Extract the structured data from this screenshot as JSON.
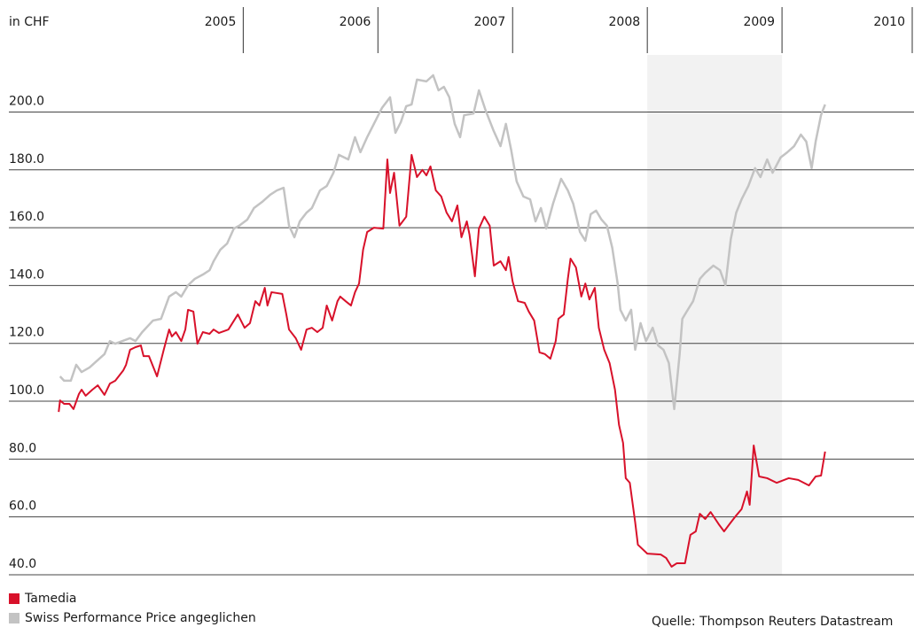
{
  "chart_data": {
    "type": "line",
    "axis_label": "in CHF",
    "source": "Quelle: Thompson Reuters Datastream",
    "xlim": [
      2004.26,
      2010.98
    ],
    "xticks": [
      2005,
      2006,
      2007,
      2008,
      2009,
      2010
    ],
    "ylim": [
      40,
      215
    ],
    "yticks": [
      {
        "value": 40,
        "label": "40.0"
      },
      {
        "value": 60,
        "label": "60.0"
      },
      {
        "value": 80,
        "label": "80.0"
      },
      {
        "value": 100,
        "label": "100.0"
      },
      {
        "value": 120,
        "label": "120.0"
      },
      {
        "value": 140,
        "label": "140.0"
      },
      {
        "value": 160,
        "label": "160.0"
      },
      {
        "value": 180,
        "label": "180.0"
      },
      {
        "value": 200,
        "label": "200.0"
      }
    ],
    "grid": true,
    "highlight": [
      2009,
      2010
    ],
    "highlight_color": "#f2f2f2",
    "series": [
      {
        "name": "Swiss Performance Price angeglichen",
        "color": "#c3c3c3",
        "x": [
          2004.64,
          2004.67,
          2004.72,
          2004.76,
          2004.8,
          2004.86,
          2004.91,
          2004.97,
          2005.01,
          2005.05,
          2005.16,
          2005.2,
          2005.25,
          2005.33,
          2005.39,
          2005.45,
          2005.5,
          2005.54,
          2005.59,
          2005.64,
          2005.7,
          2005.75,
          2005.78,
          2005.83,
          2005.88,
          2005.93,
          2005.97,
          2006.03,
          2006.08,
          2006.14,
          2006.2,
          2006.25,
          2006.3,
          2006.34,
          2006.38,
          2006.42,
          2006.47,
          2006.51,
          2006.57,
          2006.62,
          2006.67,
          2006.71,
          2006.78,
          2006.83,
          2006.87,
          2006.92,
          2006.97,
          2007.03,
          2007.09,
          2007.13,
          2007.17,
          2007.21,
          2007.25,
          2007.29,
          2007.36,
          2007.41,
          2007.45,
          2007.49,
          2007.53,
          2007.57,
          2007.61,
          2007.64,
          2007.71,
          2007.75,
          2007.8,
          2007.86,
          2007.91,
          2007.95,
          2007.99,
          2008.03,
          2008.08,
          2008.13,
          2008.17,
          2008.21,
          2008.25,
          2008.3,
          2008.36,
          2008.41,
          2008.45,
          2008.5,
          2008.54,
          2008.58,
          2008.62,
          2008.66,
          2008.7,
          2008.74,
          2008.78,
          2008.8,
          2008.84,
          2008.88,
          2008.91,
          2008.95,
          2008.99,
          2009.04,
          2009.08,
          2009.12,
          2009.16,
          2009.2,
          2009.24,
          2009.26,
          2009.3,
          2009.34,
          2009.39,
          2009.43,
          2009.49,
          2009.54,
          2009.58,
          2009.62,
          2009.66,
          2009.7,
          2009.75,
          2009.8,
          2009.84,
          2009.89,
          2009.93,
          2009.99,
          2010.04,
          2010.09,
          2010.14,
          2010.18,
          2010.22,
          2010.25,
          2010.29,
          2010.32
        ],
        "values": [
          108.6,
          107.1,
          107.1,
          112.6,
          110.1,
          111.7,
          113.8,
          116.3,
          120.8,
          119.9,
          121.8,
          120.8,
          123.9,
          127.9,
          128.5,
          136.2,
          137.7,
          136.2,
          140.1,
          142.3,
          143.8,
          145.3,
          148.4,
          152.4,
          154.5,
          159.7,
          160.7,
          162.8,
          166.8,
          168.9,
          171.4,
          172.9,
          173.8,
          160.7,
          156.7,
          162.2,
          165.2,
          166.8,
          172.9,
          174.4,
          179,
          185.2,
          183.6,
          191.3,
          186.1,
          191.3,
          195.9,
          201.4,
          205.1,
          192.8,
          196.5,
          202,
          202.6,
          211.2,
          210.6,
          212.7,
          207.5,
          208.7,
          205.1,
          195.9,
          191.3,
          198.9,
          199.5,
          207.5,
          200.5,
          193.4,
          188.2,
          195.9,
          186.7,
          176,
          170.8,
          169.8,
          162.2,
          166.8,
          159.7,
          168.3,
          176.9,
          172.9,
          168.3,
          158.5,
          155.5,
          164.7,
          165.9,
          162.8,
          160.7,
          153,
          140.7,
          131.6,
          127.9,
          131.6,
          117.8,
          127,
          120.8,
          125.4,
          119.3,
          117.8,
          113.2,
          97.3,
          116.3,
          128.5,
          131.6,
          134.6,
          142.3,
          144.4,
          146.9,
          145.3,
          140.1,
          156.1,
          165.2,
          169.8,
          174.4,
          180.6,
          177.5,
          183.6,
          179,
          184.3,
          186.1,
          188.2,
          192.2,
          189.8,
          180.6,
          189.8,
          199,
          202.6
        ]
      },
      {
        "name": "Tamedia",
        "color": "#d8112a",
        "x": [
          2004.63,
          2004.64,
          2004.67,
          2004.71,
          2004.74,
          2004.78,
          2004.8,
          2004.83,
          2004.88,
          2004.92,
          2004.97,
          2005.01,
          2005.05,
          2005.11,
          2005.13,
          2005.16,
          2005.2,
          2005.24,
          2005.26,
          2005.3,
          2005.36,
          2005.41,
          2005.45,
          2005.47,
          2005.5,
          2005.54,
          2005.57,
          2005.59,
          2005.63,
          2005.66,
          2005.7,
          2005.75,
          2005.78,
          2005.82,
          2005.89,
          2005.96,
          2006.01,
          2006.05,
          2006.09,
          2006.12,
          2006.16,
          2006.18,
          2006.21,
          2006.29,
          2006.32,
          2006.34,
          2006.39,
          2006.43,
          2006.47,
          2006.51,
          2006.55,
          2006.59,
          2006.62,
          2006.66,
          2006.7,
          2006.72,
          2006.76,
          2006.8,
          2006.83,
          2006.86,
          2006.89,
          2006.92,
          2006.97,
          2007.04,
          2007.07,
          2007.09,
          2007.12,
          2007.16,
          2007.21,
          2007.25,
          2007.29,
          2007.33,
          2007.36,
          2007.39,
          2007.43,
          2007.47,
          2007.51,
          2007.55,
          2007.59,
          2007.62,
          2007.66,
          2007.68,
          2007.72,
          2007.75,
          2007.79,
          2007.83,
          2007.86,
          2007.91,
          2007.95,
          2007.97,
          2008.0,
          2008.04,
          2008.09,
          2008.12,
          2008.16,
          2008.2,
          2008.24,
          2008.28,
          2008.32,
          2008.34,
          2008.38,
          2008.41,
          2008.43,
          2008.47,
          2008.51,
          2008.54,
          2008.57,
          2008.61,
          2008.64,
          2008.68,
          2008.72,
          2008.76,
          2008.79,
          2008.82,
          2008.84,
          2008.87,
          2008.91,
          2008.93,
          2009.0,
          2009.1,
          2009.14,
          2009.18,
          2009.22,
          2009.28,
          2009.32,
          2009.36,
          2009.39,
          2009.43,
          2009.47,
          2009.53,
          2009.57,
          2009.61,
          2009.66,
          2009.7,
          2009.74,
          2009.76,
          2009.79,
          2009.83,
          2009.89,
          2009.96,
          2010.05,
          2010.12,
          2010.2,
          2010.25,
          2010.29,
          2010.32
        ],
        "values": [
          96.3,
          100.3,
          99.1,
          99.1,
          97.3,
          102.5,
          104,
          101.9,
          104,
          105.5,
          102.2,
          106.1,
          107.1,
          110.7,
          112.6,
          117.8,
          118.7,
          119.3,
          115.6,
          115.6,
          108.6,
          117.8,
          124.8,
          122.4,
          123.9,
          120.8,
          124.8,
          131.6,
          131,
          119.9,
          123.9,
          123.3,
          124.8,
          123.6,
          124.8,
          130,
          125.4,
          127,
          134.6,
          133.1,
          139.2,
          133.1,
          137.7,
          137.1,
          130,
          124.8,
          121.8,
          117.8,
          124.8,
          125.4,
          123.9,
          125.4,
          133.1,
          127.9,
          134.6,
          136.2,
          134.6,
          133.1,
          137.7,
          140.7,
          152.4,
          158.5,
          160,
          159.7,
          183.6,
          172,
          179,
          160.7,
          163.8,
          185.2,
          177.5,
          180,
          178.1,
          181.2,
          172.9,
          170.8,
          165.2,
          162.2,
          167.7,
          156.7,
          162.2,
          157.6,
          143.2,
          159.7,
          163.8,
          160.7,
          146.9,
          148.4,
          145.3,
          149.9,
          141.4,
          134.6,
          134,
          131,
          127.9,
          116.9,
          116.3,
          114.7,
          120.8,
          128.5,
          130,
          142.3,
          149.3,
          146.3,
          136.2,
          140.7,
          135.2,
          139.2,
          125.4,
          117.8,
          113.2,
          104,
          91.8,
          85.6,
          73.4,
          71.8,
          58.1,
          50.4,
          47.3,
          47,
          45.8,
          42.8,
          44,
          44,
          53.8,
          55,
          61.1,
          59.3,
          61.7,
          57.5,
          55,
          57.5,
          60.5,
          62.7,
          68.8,
          64.2,
          84.7,
          74,
          73.4,
          71.8,
          73.4,
          72.8,
          70.9,
          74,
          74.3,
          82.6
        ]
      }
    ]
  }
}
